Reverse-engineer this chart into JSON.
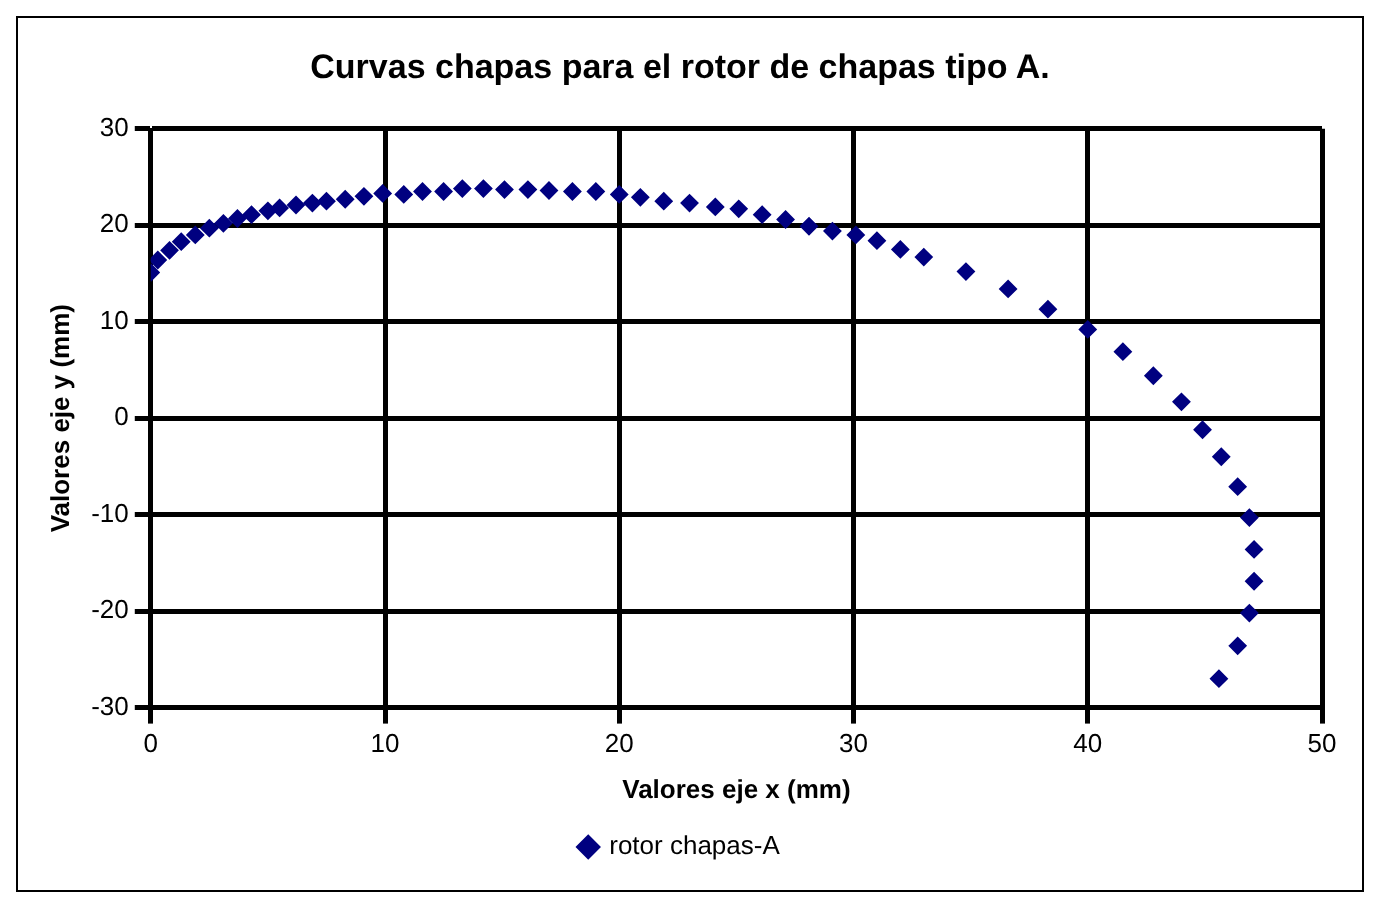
{
  "chart_data": {
    "type": "scatter",
    "title": "Curvas chapas para el rotor de chapas tipo A.",
    "xlabel": "Valores eje x (mm)",
    "ylabel": "Valores eje y (mm)",
    "xlim": [
      0,
      50
    ],
    "xticks": [
      0,
      10,
      20,
      30,
      40,
      50
    ],
    "ylim": [
      -30,
      30
    ],
    "yticks": [
      -30,
      -20,
      -10,
      0,
      10,
      20,
      30
    ],
    "grid": true,
    "legend": "bottom",
    "marker": "diamond",
    "series": [
      {
        "name": "rotor chapas-A",
        "color": "#000080",
        "x": [
          0,
          0.3,
          0.8,
          1.3,
          1.9,
          2.5,
          3.1,
          3.7,
          4.3,
          5,
          5.5,
          6.2,
          6.9,
          7.5,
          8.3,
          9.1,
          9.9,
          10.8,
          11.6,
          12.5,
          13.3,
          14.2,
          15.1,
          16.1,
          17,
          18,
          19,
          20,
          20.9,
          21.9,
          23,
          24.1,
          25.1,
          26.1,
          27.1,
          28.1,
          29.1,
          30.1,
          31,
          32,
          33,
          34.8,
          36.6,
          38.3,
          40,
          41.5,
          42.8,
          44,
          44.9,
          45.7,
          46.4,
          46.9,
          47.1,
          47.1,
          46.9,
          46.4,
          45.6
        ],
        "values": [
          15.1,
          16.4,
          17.4,
          18.3,
          19,
          19.7,
          20.2,
          20.7,
          21.1,
          21.5,
          21.8,
          22.1,
          22.3,
          22.5,
          22.7,
          23,
          23.3,
          23.2,
          23.5,
          23.5,
          23.8,
          23.8,
          23.7,
          23.7,
          23.6,
          23.5,
          23.5,
          23.2,
          22.9,
          22.5,
          22.3,
          21.9,
          21.7,
          21.1,
          20.6,
          19.9,
          19.4,
          19,
          18.4,
          17.5,
          16.7,
          15.2,
          13.4,
          11.3,
          9.2,
          6.9,
          4.4,
          1.7,
          -1.2,
          -4,
          -7.1,
          -10.3,
          -13.6,
          -16.9,
          -20.2,
          -23.6,
          -27
        ]
      }
    ]
  }
}
